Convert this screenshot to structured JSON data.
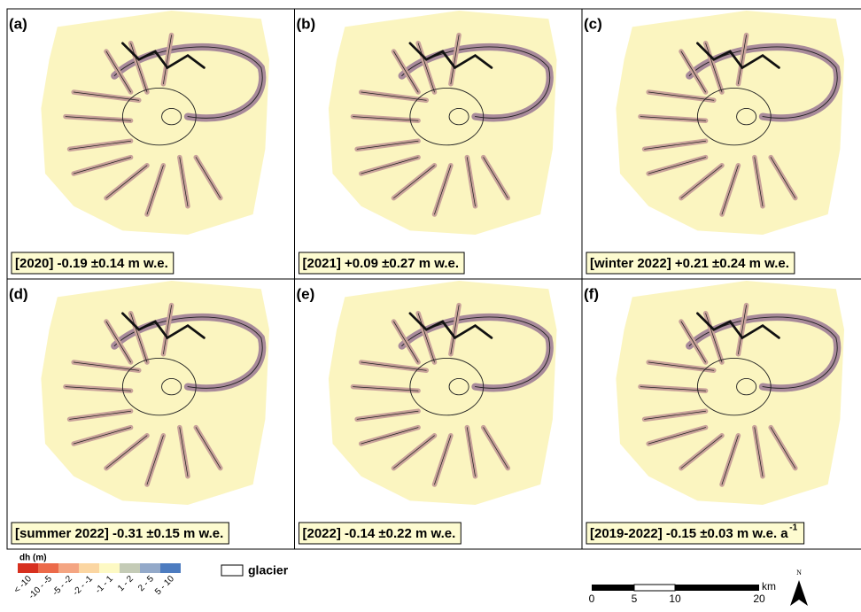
{
  "panels": [
    {
      "label": "(a)",
      "caption": "[2020] -0.19 ±0.14 m w.e."
    },
    {
      "label": "(b)",
      "caption": "[2021] +0.09 ±0.27 m w.e."
    },
    {
      "label": "(c)",
      "caption": "[winter 2022] +0.21 ±0.24 m w.e."
    },
    {
      "label": "(d)",
      "caption": "[summer 2022] -0.31 ±0.15 m w.e."
    },
    {
      "label": "(e)",
      "caption": "[2022] -0.14 ±0.22 m w.e."
    },
    {
      "label": "(f)",
      "caption": "[2019-2022] -0.15 ±0.03 m w.e. a",
      "caption_sup": "-1"
    }
  ],
  "legend": {
    "title": "dh (m)",
    "classes": [
      {
        "label": "< -10",
        "color": "#d7301f"
      },
      {
        "label": "-10 - -5",
        "color": "#ec6a4a"
      },
      {
        "label": "-5 - -2",
        "color": "#f4a582"
      },
      {
        "label": "-2 - -1",
        "color": "#fbd6a2"
      },
      {
        "label": "-1 - 1",
        "color": "#fdf9c4"
      },
      {
        "label": "1 - 2",
        "color": "#c4cbb6"
      },
      {
        "label": "2 - 5",
        "color": "#93a9c9"
      },
      {
        "label": "5 - 10",
        "color": "#4d7cc0"
      }
    ],
    "glacier": "glacier"
  },
  "scale_bar": {
    "ticks": [
      "0",
      "5",
      "10",
      "20"
    ],
    "unit": "km"
  },
  "north": "N"
}
